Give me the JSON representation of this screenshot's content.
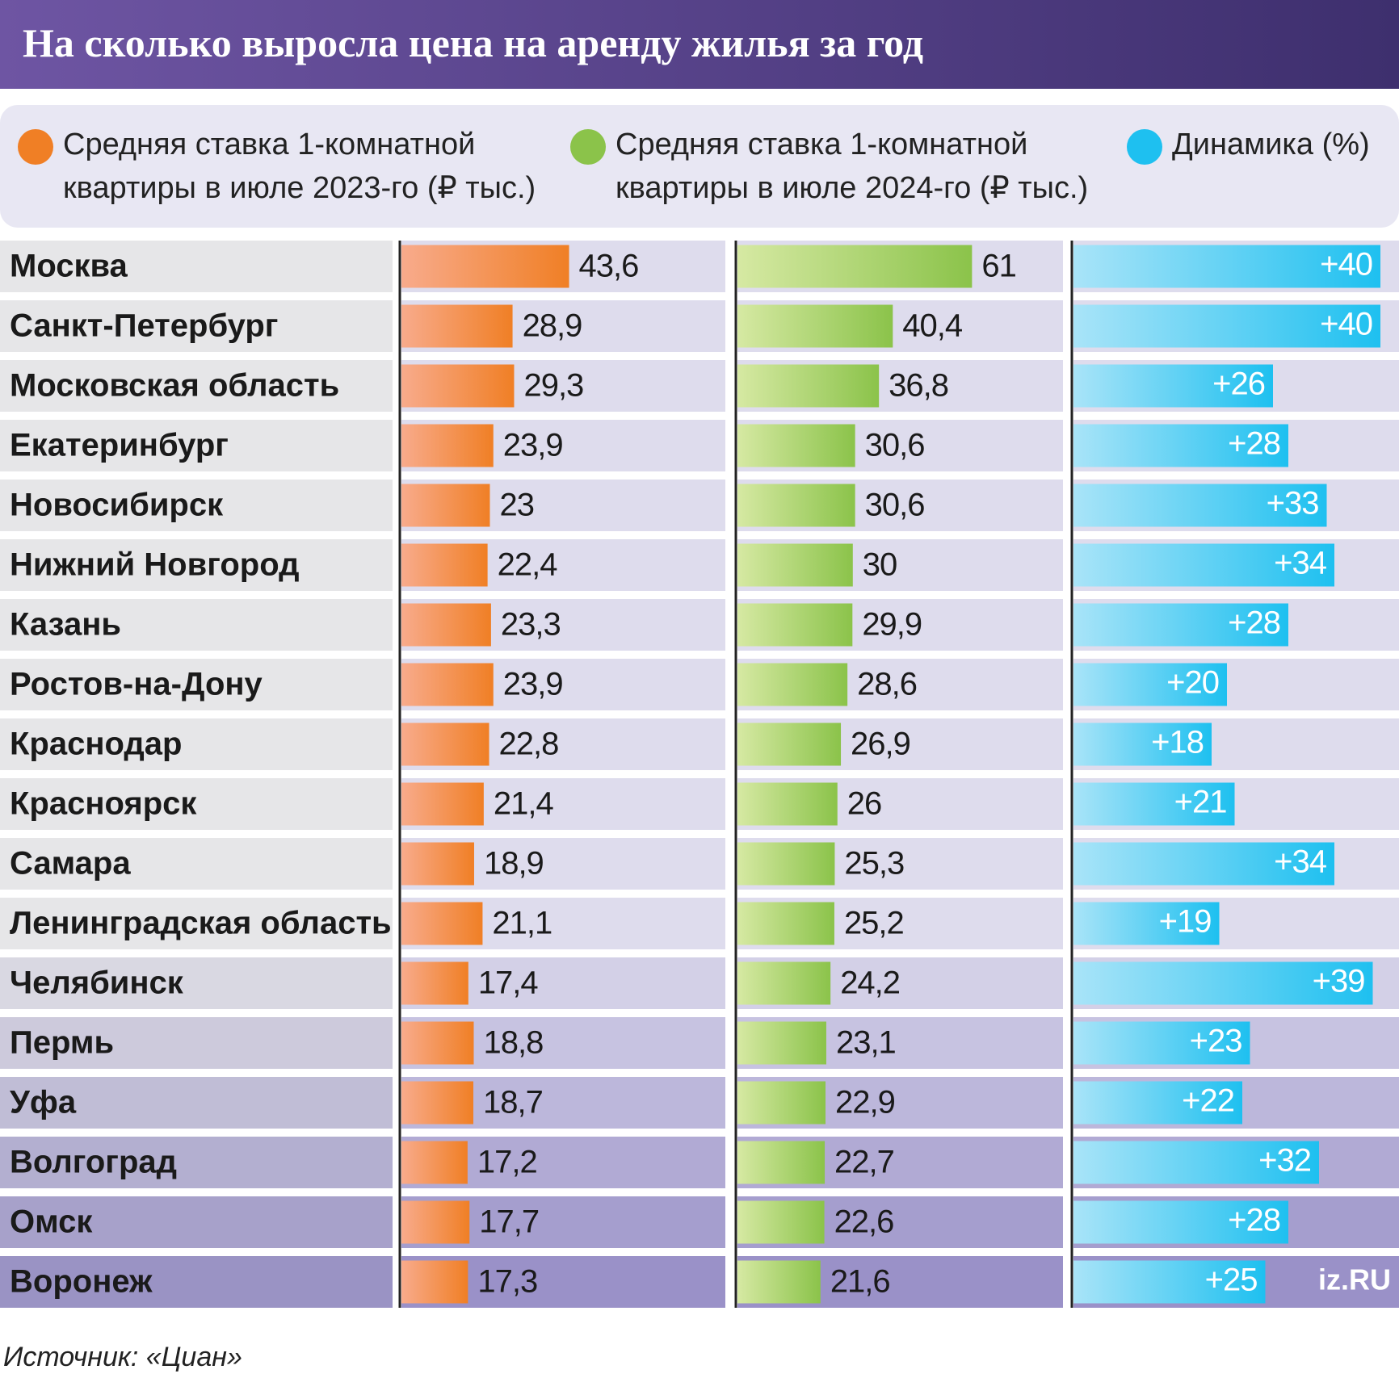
{
  "chart_data": {
    "type": "bar",
    "title": "На сколько выросла цена на аренду жилья за год",
    "categories": [
      "Москва",
      "Санкт-Петербург",
      "Московская область",
      "Екатеринбург",
      "Новосибирск",
      "Нижний Новгород",
      "Казань",
      "Ростов-на-Дону",
      "Краснодар",
      "Красноярск",
      "Самара",
      "Ленинградская область",
      "Челябинск",
      "Пермь",
      "Уфа",
      "Волгоград",
      "Омск",
      "Воронеж"
    ],
    "series": [
      {
        "name": "Средняя ставка 1-комнатной квартиры в июле 2023-го (₽ тыс.)",
        "color": "#f07f25",
        "values": [
          43.6,
          28.9,
          29.3,
          23.9,
          23,
          22.4,
          23.3,
          23.9,
          22.8,
          21.4,
          18.9,
          21.1,
          17.4,
          18.8,
          18.7,
          17.2,
          17.7,
          17.3
        ],
        "value_labels": [
          "43,6",
          "28,9",
          "29,3",
          "23,9",
          "23",
          "22,4",
          "23,3",
          "23,9",
          "22,8",
          "21,4",
          "18,9",
          "21,1",
          "17,4",
          "18,8",
          "18,7",
          "17,2",
          "17,7",
          "17,3"
        ]
      },
      {
        "name": "Средняя ставка 1-комнатной квартиры в июле 2024-го (₽ тыс.)",
        "color": "#8bc34a",
        "values": [
          61,
          40.4,
          36.8,
          30.6,
          30.6,
          30,
          29.9,
          28.6,
          26.9,
          26,
          25.3,
          25.2,
          24.2,
          23.1,
          22.9,
          22.7,
          22.6,
          21.6
        ],
        "value_labels": [
          "61",
          "40,4",
          "36,8",
          "30,6",
          "30,6",
          "30",
          "29,9",
          "28,6",
          "26,9",
          "26",
          "25,3",
          "25,2",
          "24,2",
          "23,1",
          "22,9",
          "22,7",
          "22,6",
          "21,6"
        ]
      },
      {
        "name": "Динамика (%)",
        "color": "#1ec0f0",
        "values": [
          40,
          40,
          26,
          28,
          33,
          34,
          28,
          20,
          18,
          21,
          34,
          19,
          39,
          23,
          22,
          32,
          28,
          25
        ],
        "value_labels": [
          "+40",
          "+40",
          "+26",
          "+28",
          "+33",
          "+34",
          "+28",
          "+20",
          "+18",
          "+21",
          "+34",
          "+19",
          "+39",
          "+23",
          "+22",
          "+32",
          "+28",
          "+25"
        ]
      }
    ],
    "source": "Источник: «Циан»",
    "logo": "iz.RU"
  }
}
